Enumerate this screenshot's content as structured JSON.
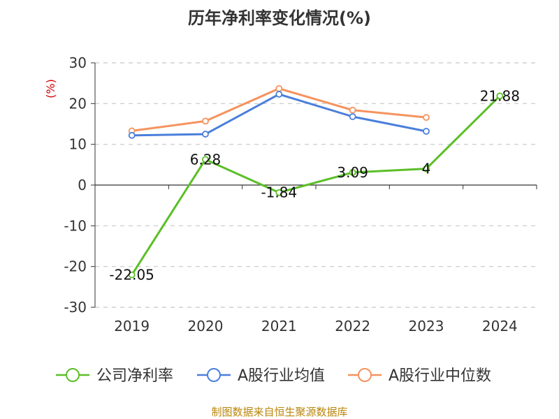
{
  "chart_data": {
    "type": "line",
    "title": "历年净利率变化情况(%)",
    "ylabel": "(%)",
    "categories": [
      "2019",
      "2020",
      "2021",
      "2022",
      "2023",
      "2024"
    ],
    "ylim": [
      -30,
      30
    ],
    "yticks": [
      "30",
      "20",
      "10",
      "0",
      "-10",
      "-20",
      "-30"
    ],
    "grid": true,
    "legend_position": "bottom",
    "series": [
      {
        "name": "公司净利率",
        "color": "#5bbf27",
        "values": [
          -22.05,
          6.28,
          -1.84,
          3.09,
          4,
          21.88
        ],
        "labels": [
          "-22.05",
          "6.28",
          "-1.84",
          "3.09",
          "4",
          "21.88"
        ]
      },
      {
        "name": "A股行业均值",
        "color": "#4a7fdb",
        "values": [
          12.2,
          12.5,
          22.3,
          16.8,
          13.2,
          null
        ]
      },
      {
        "name": "A股行业中位数",
        "color": "#f5935e",
        "values": [
          13.3,
          15.7,
          23.7,
          18.4,
          16.6,
          null
        ]
      }
    ]
  },
  "source": "制图数据来自恒生聚源数据库"
}
